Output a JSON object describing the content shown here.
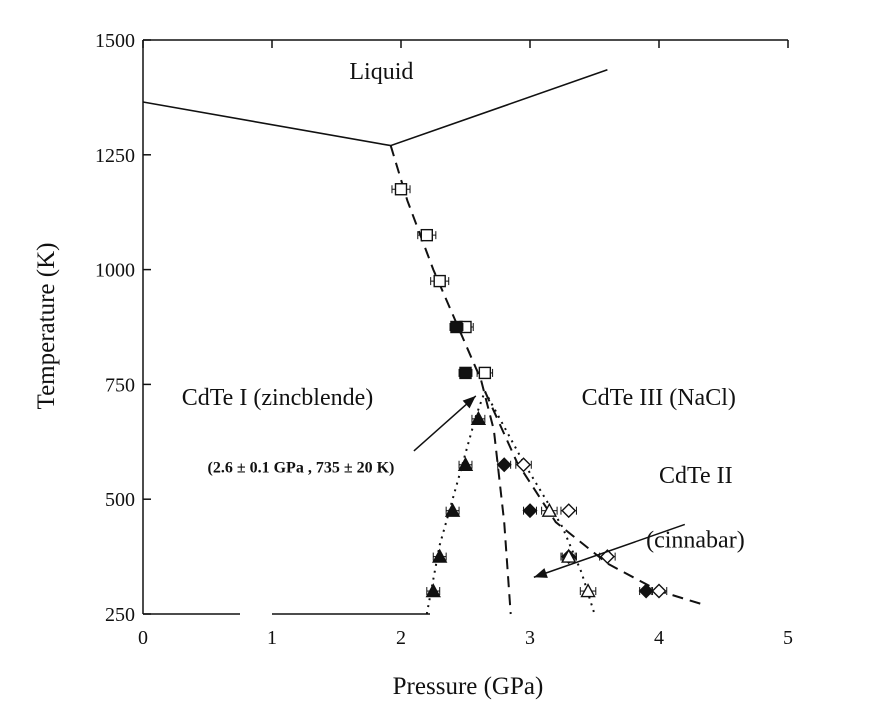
{
  "chart_data": {
    "type": "scatter",
    "title": "",
    "xlabel": "Pressure (GPa)",
    "ylabel": "Temperature (K)",
    "xlim": [
      0,
      5
    ],
    "ylim": [
      250,
      1500
    ],
    "xticks": [
      0,
      1,
      2,
      3,
      4,
      5
    ],
    "xtick_labels": [
      "0",
      "1",
      "2",
      "3",
      "4",
      "5"
    ],
    "yticks": [
      250,
      500,
      750,
      1000,
      1250,
      1500
    ],
    "ytick_labels": [
      "250",
      "500",
      "750",
      "1000",
      "1250",
      "1500"
    ],
    "grid": false,
    "legend": "none",
    "lines": [
      {
        "style": "solid",
        "x": [
          0,
          1.92,
          3.6
        ],
        "y": [
          1365,
          1270,
          1435
        ]
      },
      {
        "style": "dashed",
        "x": [
          1.92,
          2.05,
          2.25,
          2.45,
          2.62,
          2.72,
          2.8,
          2.85
        ],
        "y": [
          1270,
          1150,
          1000,
          870,
          760,
          650,
          450,
          250
        ]
      },
      {
        "style": "dotted",
        "x": [
          2.2,
          2.3,
          2.45,
          2.58,
          2.65
        ],
        "y": [
          250,
          400,
          550,
          680,
          735
        ]
      },
      {
        "style": "dotted",
        "x": [
          2.65,
          2.95,
          3.25,
          3.4,
          3.5
        ],
        "y": [
          735,
          580,
          440,
          340,
          250
        ]
      },
      {
        "style": "dashed",
        "x": [
          2.65,
          2.9,
          3.2,
          3.6,
          4.0,
          4.35
        ],
        "y": [
          735,
          580,
          450,
          360,
          300,
          270
        ]
      }
    ],
    "series": [
      {
        "marker": "open-square",
        "x": [
          2.0,
          2.2,
          2.3,
          2.5,
          2.65
        ],
        "y": [
          1175,
          1075,
          975,
          875,
          775
        ],
        "xerr": [
          0.07,
          0.07,
          0.07,
          0.06,
          0.06
        ]
      },
      {
        "marker": "filled-square",
        "x": [
          2.43,
          2.5
        ],
        "y": [
          875,
          775
        ],
        "xerr": [
          0.05,
          0.05
        ]
      },
      {
        "marker": "filled-triangle",
        "x": [
          2.25,
          2.3,
          2.4,
          2.5,
          2.6
        ],
        "y": [
          300,
          375,
          475,
          575,
          675
        ],
        "xerr": [
          0.05,
          0.05,
          0.05,
          0.05,
          0.05
        ]
      },
      {
        "marker": "filled-diamond",
        "x": [
          2.8,
          3.0,
          3.3,
          3.9
        ],
        "y": [
          575,
          475,
          375,
          300
        ],
        "xerr": [
          0.05,
          0.05,
          0.05,
          0.05
        ]
      },
      {
        "marker": "open-triangle",
        "x": [
          3.15,
          3.3,
          3.45
        ],
        "y": [
          475,
          375,
          300
        ],
        "xerr": [
          0.06,
          0.06,
          0.06
        ]
      },
      {
        "marker": "open-diamond",
        "x": [
          2.95,
          3.3,
          3.6,
          4.0
        ],
        "y": [
          575,
          475,
          375,
          300
        ],
        "xerr": [
          0.06,
          0.06,
          0.06,
          0.06
        ]
      }
    ],
    "annotations": [
      {
        "text": "Liquid",
        "x": 1.6,
        "y": 1415
      },
      {
        "text": "CdTe I (zincblende)",
        "x": 0.3,
        "y": 705
      },
      {
        "text": "CdTe III (NaCl)",
        "x": 3.4,
        "y": 705
      },
      {
        "text": "CdTe II",
        "x": 4.0,
        "y": 535
      },
      {
        "text": "(cinnabar)",
        "x": 3.9,
        "y": 395
      },
      {
        "text": "(2.6 ± 0.1 GPa , 735 ± 20 K)",
        "x": 0.5,
        "y": 558
      }
    ],
    "arrows": [
      {
        "from": [
          2.1,
          605
        ],
        "to": [
          2.58,
          725
        ]
      },
      {
        "from": [
          4.2,
          445
        ],
        "to": [
          3.03,
          330
        ]
      }
    ]
  }
}
